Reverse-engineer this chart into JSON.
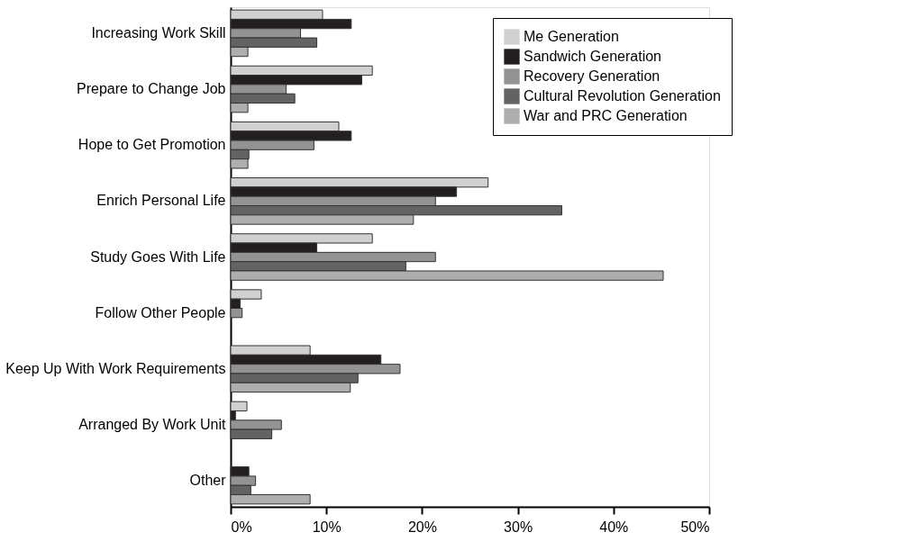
{
  "chart_data": {
    "type": "bar",
    "orientation": "horizontal",
    "categories": [
      "Increasing Work Skill",
      "Prepare to Change Job",
      "Hope to Get Promotion",
      "Enrich Personal Life",
      "Study Goes With Life",
      "Follow Other People",
      "Keep Up With Work Requirements",
      "Arranged By Work Unit",
      "Other"
    ],
    "series": [
      {
        "name": "Me Generation",
        "color": "#d0d0d0",
        "values": [
          9.6,
          14.8,
          11.3,
          26.9,
          14.8,
          3.2,
          8.3,
          1.7,
          0
        ]
      },
      {
        "name": "Sandwich Generation",
        "color": "#231f20",
        "values": [
          12.6,
          13.7,
          12.6,
          23.6,
          9.0,
          1.0,
          15.7,
          0.5,
          1.9
        ]
      },
      {
        "name": "Recovery Generation",
        "color": "#939393",
        "values": [
          7.3,
          5.8,
          8.7,
          21.4,
          21.4,
          1.2,
          17.7,
          5.3,
          2.6
        ]
      },
      {
        "name": "Cultural Revolution Generation",
        "color": "#636363",
        "values": [
          9.0,
          6.7,
          1.9,
          34.6,
          18.3,
          0,
          13.3,
          4.3,
          2.1
        ]
      },
      {
        "name": "War and PRC Generation",
        "color": "#aeaeae",
        "values": [
          1.8,
          1.8,
          1.8,
          19.1,
          45.2,
          0,
          12.5,
          0,
          8.3
        ]
      }
    ],
    "xlim": [
      0,
      50
    ],
    "xticks": [
      {
        "value": 0,
        "label": "0%"
      },
      {
        "value": 10,
        "label": "10%"
      },
      {
        "value": 20,
        "label": "20%"
      },
      {
        "value": 30,
        "label": "30%"
      },
      {
        "value": 40,
        "label": "40%"
      },
      {
        "value": 50,
        "label": "50%"
      }
    ],
    "grid": false,
    "legend": "top right"
  }
}
